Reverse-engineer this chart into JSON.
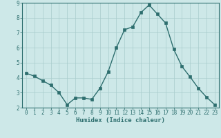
{
  "x": [
    0,
    1,
    2,
    3,
    4,
    5,
    6,
    7,
    8,
    9,
    10,
    11,
    12,
    13,
    14,
    15,
    16,
    17,
    18,
    19,
    20,
    21,
    22,
    23
  ],
  "y": [
    4.3,
    4.1,
    3.8,
    3.5,
    3.0,
    2.2,
    2.65,
    2.65,
    2.55,
    3.3,
    4.4,
    6.0,
    7.2,
    7.4,
    8.35,
    8.85,
    8.25,
    7.65,
    5.9,
    4.75,
    4.05,
    3.3,
    2.7,
    2.2
  ],
  "xlabel": "Humidex (Indice chaleur)",
  "ylim": [
    2,
    9
  ],
  "xlim": [
    -0.5,
    23.5
  ],
  "yticks": [
    2,
    3,
    4,
    5,
    6,
    7,
    8,
    9
  ],
  "xticks": [
    0,
    1,
    2,
    3,
    4,
    5,
    6,
    7,
    8,
    9,
    10,
    11,
    12,
    13,
    14,
    15,
    16,
    17,
    18,
    19,
    20,
    21,
    22,
    23
  ],
  "line_color": "#2d6e6e",
  "marker": "s",
  "marker_size": 2.5,
  "bg_color": "#cde8e8",
  "grid_color": "#a8cccc",
  "axes_color": "#2d6e6e",
  "tick_color": "#2d6e6e",
  "label_color": "#2d6e6e",
  "xlabel_fontsize": 6.5,
  "tick_fontsize": 5.5,
  "linewidth": 1.0
}
